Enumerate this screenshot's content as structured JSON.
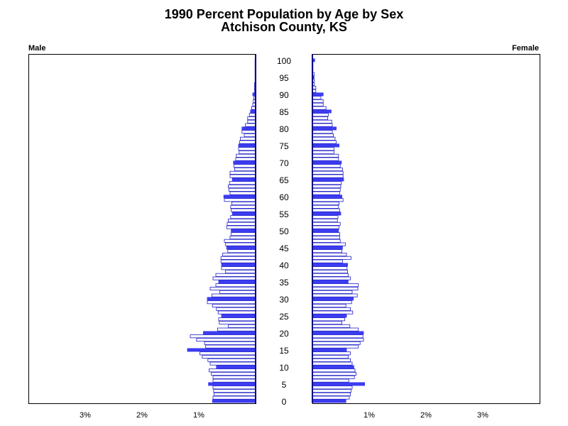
{
  "chart_data": {
    "type": "bar",
    "title": "1990 Percent Population by Age by Sex",
    "subtitle": "Atchison County, KS",
    "left_label": "Male",
    "right_label": "Female",
    "age_tick_labels": [
      "0",
      "5",
      "10",
      "15",
      "20",
      "25",
      "30",
      "35",
      "40",
      "45",
      "50",
      "55",
      "60",
      "65",
      "70",
      "75",
      "80",
      "85",
      "90",
      "95",
      "100"
    ],
    "x_tick_labels": [
      "3%",
      "2%",
      "1%"
    ],
    "x_range_percent": [
      0,
      4
    ],
    "age_range": [
      0,
      100
    ],
    "highlight_every": 5,
    "colors": {
      "highlight": "#3c3cf0",
      "outline": "#2020c8",
      "axis": "#000000"
    },
    "male_percent": [
      0.76,
      0.75,
      0.73,
      0.74,
      0.75,
      0.83,
      0.75,
      0.75,
      0.78,
      0.82,
      0.69,
      0.8,
      0.84,
      0.94,
      0.98,
      1.2,
      0.88,
      0.9,
      1.04,
      1.15,
      0.92,
      0.67,
      0.48,
      0.64,
      0.65,
      0.6,
      0.66,
      0.69,
      0.76,
      0.85,
      0.85,
      0.77,
      0.63,
      0.8,
      0.7,
      0.65,
      0.75,
      0.7,
      0.53,
      0.6,
      0.6,
      0.61,
      0.61,
      0.58,
      0.49,
      0.51,
      0.53,
      0.55,
      0.45,
      0.43,
      0.43,
      0.51,
      0.5,
      0.48,
      0.44,
      0.41,
      0.43,
      0.44,
      0.42,
      0.55,
      0.56,
      0.45,
      0.47,
      0.48,
      0.46,
      0.41,
      0.45,
      0.45,
      0.37,
      0.38,
      0.39,
      0.35,
      0.34,
      0.29,
      0.3,
      0.3,
      0.28,
      0.27,
      0.2,
      0.24,
      0.24,
      0.18,
      0.14,
      0.14,
      0.11,
      0.09,
      0.07,
      0.05,
      0.04,
      0.03,
      0.05,
      0.02,
      0.02,
      0.02,
      0.01,
      0.01,
      0.01,
      0.01,
      0.01,
      0.01,
      0.01
    ],
    "female_percent": [
      0.59,
      0.65,
      0.67,
      0.68,
      0.7,
      0.92,
      0.64,
      0.74,
      0.77,
      0.75,
      0.73,
      0.7,
      0.67,
      0.63,
      0.67,
      0.6,
      0.81,
      0.84,
      0.9,
      0.89,
      0.9,
      0.81,
      0.66,
      0.52,
      0.57,
      0.6,
      0.71,
      0.67,
      0.59,
      0.69,
      0.72,
      0.79,
      0.7,
      0.8,
      0.81,
      0.63,
      0.67,
      0.63,
      0.62,
      0.61,
      0.62,
      0.53,
      0.68,
      0.6,
      0.52,
      0.53,
      0.58,
      0.49,
      0.48,
      0.48,
      0.46,
      0.47,
      0.49,
      0.44,
      0.45,
      0.5,
      0.48,
      0.46,
      0.47,
      0.54,
      0.52,
      0.48,
      0.49,
      0.5,
      0.51,
      0.55,
      0.54,
      0.54,
      0.53,
      0.49,
      0.51,
      0.46,
      0.46,
      0.38,
      0.38,
      0.47,
      0.42,
      0.4,
      0.37,
      0.35,
      0.42,
      0.35,
      0.34,
      0.27,
      0.28,
      0.33,
      0.24,
      0.19,
      0.19,
      0.15,
      0.19,
      0.06,
      0.06,
      0.03,
      0.03,
      0.03,
      0.03,
      0.01,
      0.01,
      0.01,
      0.04
    ]
  }
}
